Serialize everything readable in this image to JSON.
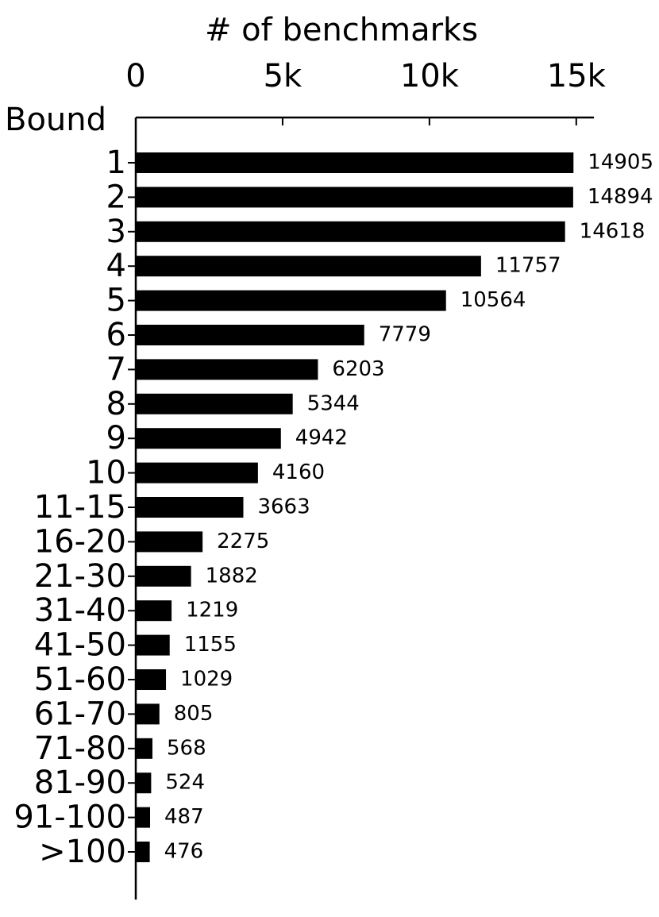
{
  "chart_data": {
    "type": "barh",
    "title": "# of benchmarks",
    "y_label": "Bound",
    "categories": [
      "1",
      "2",
      "3",
      "4",
      "5",
      "6",
      "7",
      "8",
      "9",
      "10",
      "11-15",
      "16-20",
      "21-30",
      "31-40",
      "41-50",
      "51-60",
      "61-70",
      "71-80",
      "81-90",
      "91-100",
      ">100"
    ],
    "values": [
      14905,
      14894,
      14618,
      11757,
      10564,
      7779,
      6203,
      5344,
      4942,
      4160,
      3663,
      2275,
      1882,
      1219,
      1155,
      1029,
      805,
      568,
      524,
      487,
      476
    ],
    "color": "#000000",
    "xlim": [
      0,
      15600
    ],
    "xticks": [
      0,
      {
        "value": 5000,
        "label": "5k"
      },
      {
        "value": 10000,
        "label": "10k"
      },
      {
        "value": 15000,
        "label": "15k"
      }
    ],
    "value_labels_shown": true
  }
}
